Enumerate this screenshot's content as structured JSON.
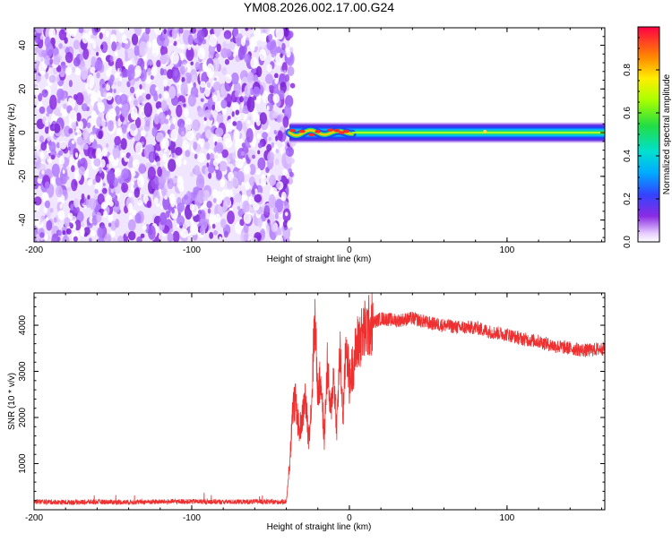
{
  "title": "YM08.2026.002.17.00.G24",
  "colors": {
    "signal": "#ee3030",
    "noise_purple": "#8a2be2",
    "axis": "#000000"
  },
  "chart_data": [
    {
      "type": "heatmap",
      "title": "YM08.2026.002.17.00.G24",
      "xlabel": "Height of straight line (km)",
      "ylabel": "Frequency (Hz)",
      "xlim": [
        -200,
        162
      ],
      "ylim": [
        -50,
        48
      ],
      "xticks": [
        -200,
        -100,
        0,
        100
      ],
      "xtick_labels": [
        "-200",
        "-100",
        "0",
        "100"
      ],
      "yticks": [
        -40,
        -20,
        0,
        20,
        40
      ],
      "ytick_labels": [
        "-40",
        "-20",
        "0",
        "20",
        "40"
      ],
      "colorbar": {
        "label": "Normalized spectral amplitude",
        "range": [
          0,
          1
        ],
        "ticks": [
          0.0,
          0.2,
          0.4,
          0.6,
          0.8
        ],
        "tick_labels": [
          "0.0",
          "0.2",
          "0.4",
          "0.6",
          "0.8"
        ],
        "colormap": "rainbow"
      },
      "regions": [
        {
          "x_range": [
            -200,
            -38
          ],
          "description": "noise",
          "amplitude_range": [
            0.0,
            0.2
          ]
        },
        {
          "x_range": [
            -38,
            162
          ],
          "freq_band": [
            -3,
            3
          ],
          "peak_frequency": 0,
          "peak_amplitude": 1.0
        }
      ]
    },
    {
      "type": "line",
      "xlabel": "Height of straight line (km)",
      "ylabel": "SNR (10 * v/v)",
      "xlim": [
        -200,
        162
      ],
      "ylim": [
        0,
        4700
      ],
      "xticks": [
        -200,
        -100,
        0,
        100
      ],
      "xtick_labels": [
        "-200",
        "-100",
        "0",
        "100"
      ],
      "yticks": [
        1000,
        2000,
        3000,
        4000
      ],
      "ytick_labels": [
        "1000",
        "2000",
        "3000",
        "4000"
      ],
      "series": [
        {
          "color": "#ee3030",
          "x": [
            -200,
            -180,
            -160,
            -140,
            -120,
            -100,
            -80,
            -60,
            -45,
            -40,
            -38,
            -36,
            -34,
            -32,
            -30,
            -28,
            -26,
            -24,
            -22,
            -20,
            -18,
            -16,
            -14,
            -12,
            -10,
            -8,
            -6,
            -4,
            -2,
            0,
            5,
            10,
            15,
            20,
            30,
            40,
            50,
            60,
            70,
            80,
            90,
            100,
            110,
            120,
            130,
            140,
            150,
            162
          ],
          "y": [
            180,
            160,
            170,
            165,
            175,
            180,
            170,
            175,
            170,
            180,
            900,
            2200,
            2350,
            1700,
            1950,
            2450,
            1550,
            2250,
            4250,
            2550,
            2850,
            1500,
            3150,
            2050,
            2900,
            1800,
            3450,
            2000,
            3700,
            2750,
            3600,
            3900,
            4050,
            4150,
            4100,
            4150,
            4050,
            4000,
            3950,
            3950,
            3850,
            3800,
            3700,
            3650,
            3550,
            3500,
            3450,
            3500
          ]
        }
      ]
    }
  ]
}
